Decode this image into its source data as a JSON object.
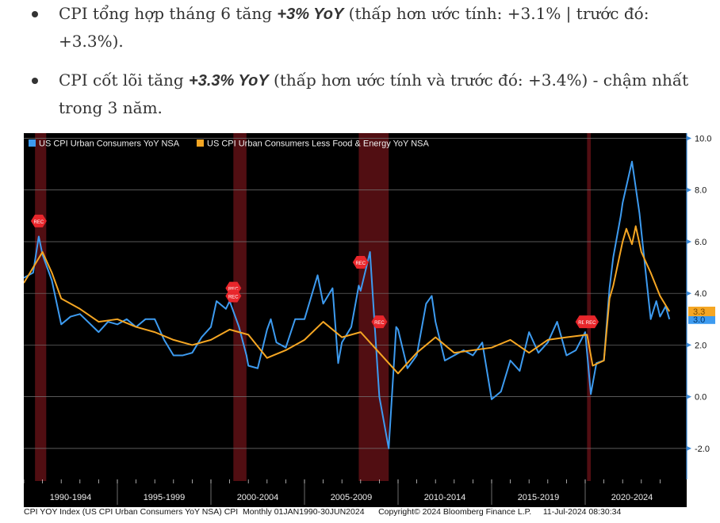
{
  "bullets": [
    {
      "pre": "CPI tổng hợp tháng 6 tăng ",
      "bold": "+3% YoY",
      "post": " (thấp hơn ước tính: +3.1% | trước đó: +3.3%)."
    },
    {
      "pre": "CPI cốt lõi tăng ",
      "bold": "+3.3% YoY",
      "post": " (thấp hơn ước tính và trước đó: +3.4%) - chậm nhất trong 3 năm."
    }
  ],
  "footer": {
    "index": "CPI YOY Index (US CPI Urban Consumers YoY NSA) CPI  Monthly 01JAN1990-30JUN2024",
    "copyright": "Copyright© 2024 Bloomberg Finance L.P.",
    "timestamp": "11-Jul-2024 08:30:34"
  },
  "chart_data": {
    "type": "line",
    "xlim": [
      1990,
      2024.9
    ],
    "ylim": [
      -3.2,
      10.2
    ],
    "yticks": [
      "10.0",
      "8.0",
      "6.0",
      "4.0",
      "2.0",
      "0.0",
      "-2.0"
    ],
    "xtick_labels": [
      "1990-1994",
      "1995-1999",
      "2000-2004",
      "2005-2009",
      "2010-2014",
      "2015-2019",
      "2020-2024"
    ],
    "recessions": [
      [
        1990.6,
        1991.2
      ],
      [
        2001.2,
        2001.9
      ],
      [
        2007.9,
        2009.5
      ],
      [
        2020.1,
        2020.3
      ]
    ],
    "rec_label": "REC",
    "rec_markers": [
      [
        1990.8,
        6.8
      ],
      [
        2001.2,
        4.2
      ],
      [
        2001.2,
        3.9
      ],
      [
        2008.0,
        5.2
      ],
      [
        2009.0,
        2.9
      ],
      [
        2019.9,
        2.9
      ],
      [
        2020.3,
        2.9
      ]
    ],
    "series": [
      {
        "name": "US CPI Urban Consumers YoY NSA",
        "color": "#3d9bf0",
        "last": "3.0",
        "x": [
          1990,
          1990.5,
          1990.8,
          1991,
          1991.5,
          1992,
          1992.5,
          1993,
          1994,
          1994.5,
          1995,
          1995.5,
          1996,
          1996.5,
          1997,
          1997.5,
          1998,
          1998.5,
          1999,
          1999.5,
          2000,
          2000.3,
          2000.8,
          2001,
          2001.5,
          2001.9,
          2002,
          2002.5,
          2003,
          2003.2,
          2003.5,
          2004,
          2004.5,
          2005,
          2005.7,
          2006,
          2006.5,
          2006.8,
          2007,
          2007.5,
          2007.9,
          2008,
          2008.5,
          2008.9,
          2009,
          2009.5,
          2009.9,
          2010,
          2010.5,
          2011,
          2011.5,
          2011.8,
          2012,
          2012.5,
          2013,
          2013.5,
          2014,
          2014.5,
          2015,
          2015.5,
          2016,
          2016.5,
          2017,
          2017.5,
          2018,
          2018.5,
          2019,
          2019.5,
          2020,
          2020.3,
          2020.6,
          2021,
          2021.3,
          2021.5,
          2021.9,
          2022,
          2022.5,
          2022.9,
          2023,
          2023.5,
          2023.8,
          2024,
          2024.3,
          2024.5
        ],
        "y": [
          4.6,
          4.8,
          6.2,
          5.5,
          4.5,
          2.8,
          3.1,
          3.2,
          2.5,
          2.9,
          2.8,
          3.0,
          2.7,
          3.0,
          3.0,
          2.2,
          1.6,
          1.6,
          1.7,
          2.3,
          2.7,
          3.7,
          3.4,
          3.7,
          2.7,
          1.6,
          1.2,
          1.1,
          2.6,
          3.0,
          2.1,
          1.9,
          3.0,
          3.0,
          4.7,
          3.6,
          4.2,
          1.3,
          2.1,
          2.7,
          4.3,
          4.1,
          5.6,
          1.1,
          0.0,
          -2.0,
          2.7,
          2.6,
          1.1,
          1.6,
          3.6,
          3.9,
          2.9,
          1.4,
          1.6,
          1.8,
          1.6,
          2.1,
          -0.1,
          0.2,
          1.4,
          1.0,
          2.5,
          1.7,
          2.1,
          2.9,
          1.6,
          1.8,
          2.5,
          0.1,
          1.3,
          1.4,
          4.2,
          5.4,
          7.0,
          7.5,
          9.1,
          7.1,
          6.4,
          3.0,
          3.7,
          3.1,
          3.5,
          3.0
        ]
      },
      {
        "name": "US CPI Urban Consumers Less Food & Energy YoY NSA",
        "color": "#f5a623",
        "last": "3.3",
        "x": [
          1990,
          1991,
          1991.5,
          1992,
          1993,
          1994,
          1995,
          1996,
          1997,
          1998,
          1999,
          2000,
          2001,
          2002,
          2003,
          2004,
          2005,
          2006,
          2007,
          2008,
          2009,
          2010,
          2011,
          2012,
          2013,
          2014,
          2015,
          2016,
          2017,
          2018,
          2019,
          2020.1,
          2020.4,
          2021,
          2021.3,
          2021.5,
          2022,
          2022.2,
          2022.5,
          2022.7,
          2023,
          2023.5,
          2024,
          2024.5
        ],
        "y": [
          4.4,
          5.6,
          4.8,
          3.8,
          3.4,
          2.9,
          3.0,
          2.7,
          2.5,
          2.2,
          2.0,
          2.2,
          2.6,
          2.4,
          1.5,
          1.8,
          2.2,
          2.9,
          2.3,
          2.5,
          1.7,
          0.9,
          1.7,
          2.3,
          1.7,
          1.8,
          1.9,
          2.2,
          1.7,
          2.2,
          2.3,
          2.4,
          1.2,
          1.4,
          3.8,
          4.3,
          6.0,
          6.5,
          5.9,
          6.6,
          5.6,
          4.8,
          3.9,
          3.3
        ]
      }
    ]
  }
}
